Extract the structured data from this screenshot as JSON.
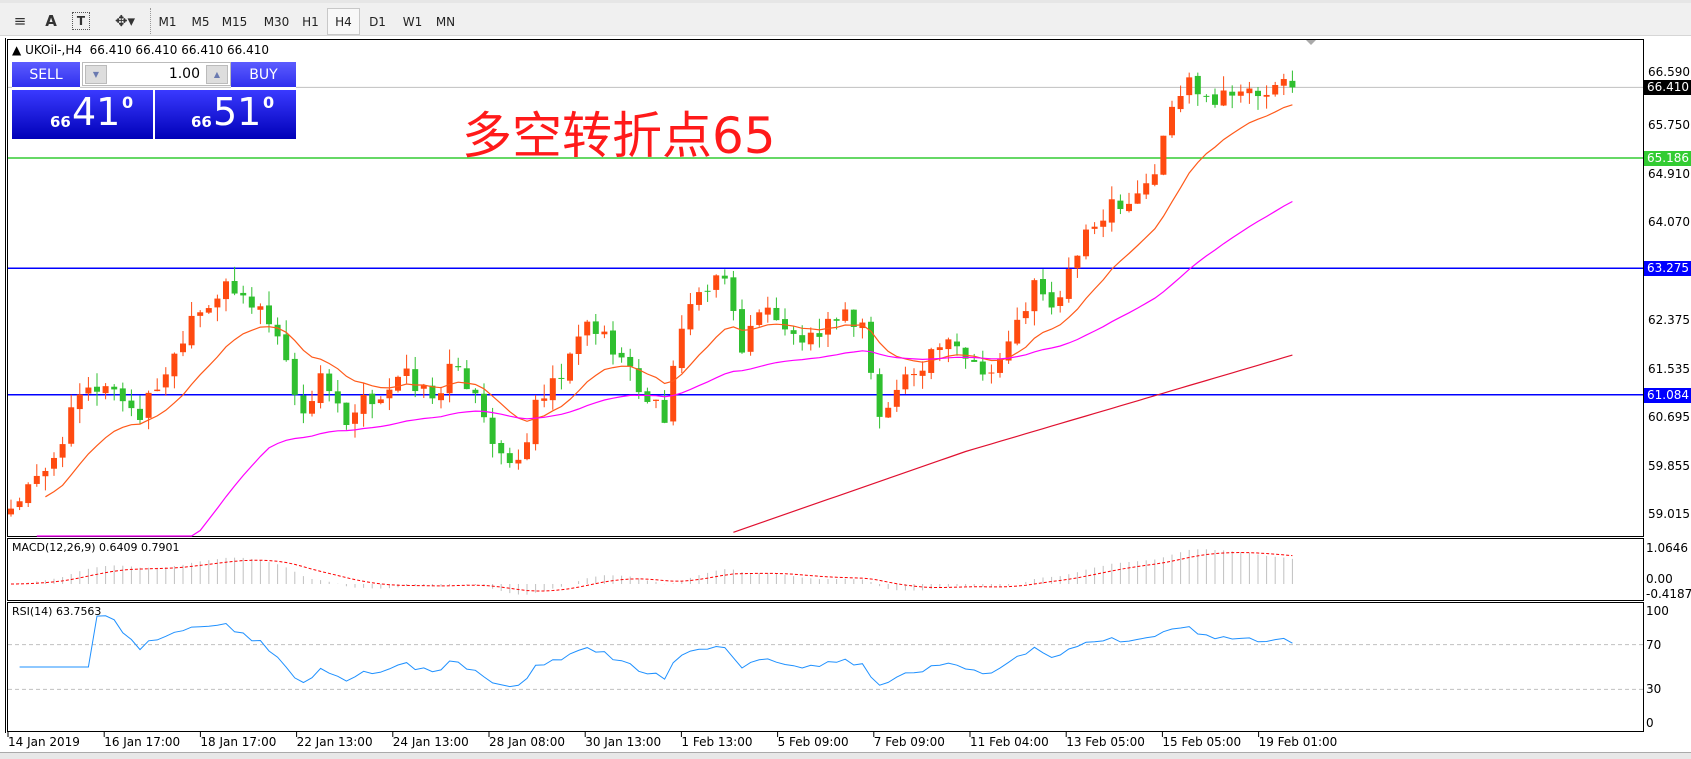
{
  "toolbar": {
    "icons": [
      "period-separator-icon",
      "text-label-icon",
      "text-box-icon",
      "arrows-icon"
    ],
    "text_icon_label": "A",
    "timeframes": [
      "M1",
      "M5",
      "M15",
      "M30",
      "H1",
      "H4",
      "D1",
      "W1",
      "MN"
    ],
    "active_timeframe": "H4"
  },
  "chart": {
    "title": "UKOil-,H4",
    "ohlc": "66.410 66.410 66.410 66.410",
    "annotation": "多空转折点65",
    "annotation_color": "#ff1a1a"
  },
  "trade_panel": {
    "sell_label": "SELL",
    "buy_label": "BUY",
    "lot": "1.00",
    "sell_prefix": "66",
    "sell_big": "41",
    "sell_sup": "0",
    "buy_prefix": "66",
    "buy_big": "51",
    "buy_sup": "0"
  },
  "price_axis": {
    "ticks": [
      "66.590",
      "65.750",
      "64.910",
      "64.070",
      "63.275",
      "62.375",
      "61.535",
      "61.084",
      "60.695",
      "59.855",
      "59.015"
    ],
    "current_price": "66.410",
    "levels": [
      {
        "value": "65.186",
        "color": "#33cc33"
      },
      {
        "value": "63.275",
        "color": "#0000ff"
      },
      {
        "value": "61.084",
        "color": "#0000ff"
      }
    ]
  },
  "macd": {
    "label": "MACD(12,26,9) 0.6409 0.7901",
    "ticks": [
      "1.0646",
      "0.00",
      "-0.4187"
    ]
  },
  "rsi": {
    "label": "RSI(14) 63.7563",
    "ticks": [
      "100",
      "70",
      "30",
      "0"
    ],
    "levels": [
      70,
      30
    ]
  },
  "time_axis": [
    "14 Jan 2019",
    "16 Jan 17:00",
    "18 Jan 17:00",
    "22 Jan 13:00",
    "24 Jan 13:00",
    "28 Jan 08:00",
    "30 Jan 13:00",
    "1 Feb 13:00",
    "5 Feb 09:00",
    "7 Feb 09:00",
    "11 Feb 04:00",
    "13 Feb 05:00",
    "15 Feb 05:00",
    "19 Feb 01:00"
  ],
  "chart_data": {
    "type": "candlestick",
    "symbol": "UKOil-",
    "timeframe": "H4",
    "ylim": [
      58.64,
      67.25
    ],
    "bar_count": 150,
    "close_path": [
      [
        0,
        59.15
      ],
      [
        4,
        59.71
      ],
      [
        8,
        61.02
      ],
      [
        11,
        61.3
      ],
      [
        15,
        60.74
      ],
      [
        19,
        61.77
      ],
      [
        21,
        62.51
      ],
      [
        25,
        62.89
      ],
      [
        29,
        62.61
      ],
      [
        32,
        61.77
      ],
      [
        34,
        60.65
      ],
      [
        36,
        61.49
      ],
      [
        39,
        60.46
      ],
      [
        41,
        60.93
      ],
      [
        46,
        61.39
      ],
      [
        49,
        61.02
      ],
      [
        51,
        61.49
      ],
      [
        54,
        61.21
      ],
      [
        57,
        59.9
      ],
      [
        59,
        59.9
      ],
      [
        61,
        60.83
      ],
      [
        64,
        61.39
      ],
      [
        67,
        62.33
      ],
      [
        70,
        61.95
      ],
      [
        73,
        61.21
      ],
      [
        76,
        60.74
      ],
      [
        79,
        62.79
      ],
      [
        81,
        62.89
      ],
      [
        83,
        63.07
      ],
      [
        85,
        61.95
      ],
      [
        88,
        62.7
      ],
      [
        90,
        62.14
      ],
      [
        94,
        61.95
      ],
      [
        96,
        62.51
      ],
      [
        99,
        62.33
      ],
      [
        101,
        60.65
      ],
      [
        104,
        61.39
      ],
      [
        108,
        61.95
      ],
      [
        111,
        61.77
      ],
      [
        114,
        61.49
      ],
      [
        116,
        61.95
      ],
      [
        119,
        62.98
      ],
      [
        121,
        62.51
      ],
      [
        124,
        63.54
      ],
      [
        128,
        64.47
      ],
      [
        130,
        64.47
      ],
      [
        133,
        64.94
      ],
      [
        135,
        66.06
      ],
      [
        137,
        66.53
      ],
      [
        140,
        66.24
      ],
      [
        142,
        66.43
      ],
      [
        145,
        66.24
      ],
      [
        148,
        66.43
      ],
      [
        149,
        66.41
      ]
    ],
    "long_ma_path": [
      [
        84,
        58.7
      ],
      [
        111,
        60.1
      ],
      [
        149,
        61.77
      ]
    ],
    "colors": {
      "up": "#ff4a10",
      "down": "#2fbf2f",
      "ma_fast": "#ff5a1a",
      "ma_mid": "#ff00ff",
      "ma_slow": "#e01030",
      "rsi": "#1e90ff",
      "macd_hist": "#c0c0c0",
      "macd_signal": "#ff0000"
    }
  }
}
